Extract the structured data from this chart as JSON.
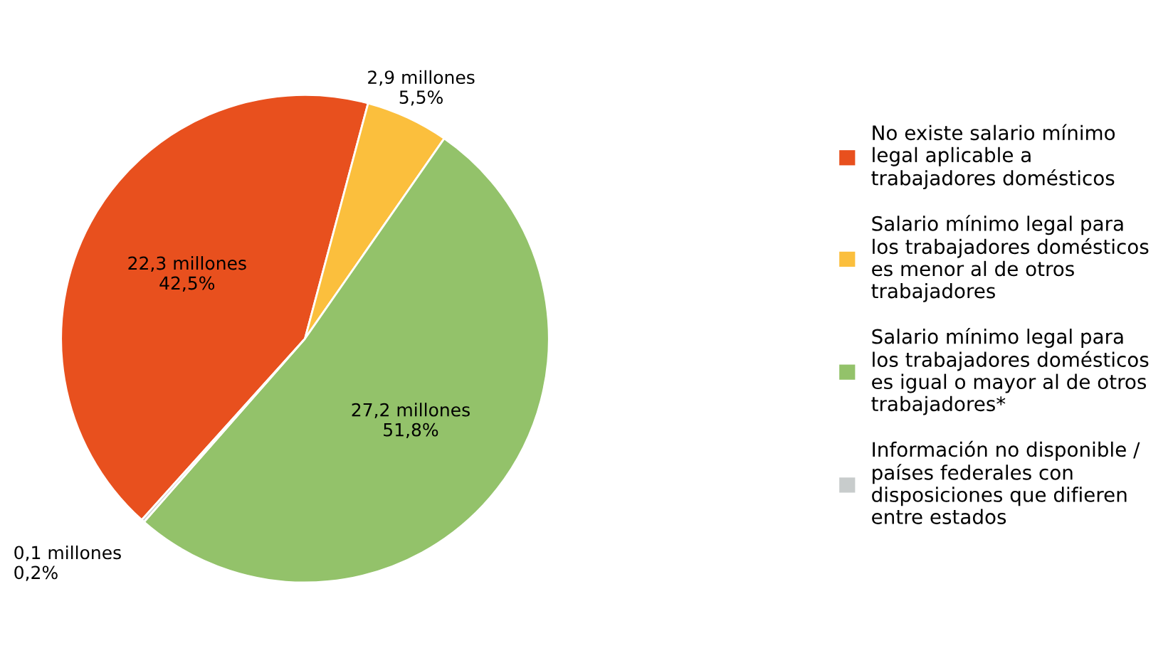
{
  "chart_data": {
    "type": "pie",
    "categories": [
      "No existe salario mínimo\nlegal aplicable a\ntrabajadores domésticos",
      "Salario mínimo legal para\nlos trabajadores domésticos\nes menor al de otros\ntrabajadores",
      "Salario mínimo legal para\nlos trabajadores domésticos\nes igual o mayor al de otros\ntrabajadores*",
      "Información no disponible /\npaíses federales con\ndisposiciones que difieren\nentre estados"
    ],
    "values": [
      42.5,
      5.5,
      51.8,
      0.2
    ],
    "colors": [
      "#e8501e",
      "#fbbf3d",
      "#93c26a",
      "#c8cccc"
    ],
    "value_labels": [
      "22,3 millones\n42,5%",
      "2,9 millones\n5,5%",
      "27,2 millones\n51,8%",
      "0,1 millones\n0,2%"
    ],
    "legend": "right"
  }
}
